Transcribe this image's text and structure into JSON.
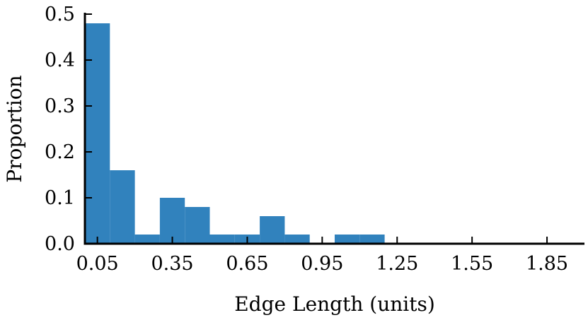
{
  "chart_data": {
    "type": "bar",
    "subtype": "histogram",
    "title": "",
    "xlabel": "Edge Length (units)",
    "ylabel": "Proportion",
    "bar_color": "#3182bd",
    "bin_width": 0.1,
    "bins": [
      {
        "x0": 0.0,
        "x1": 0.1,
        "value": 0.48
      },
      {
        "x0": 0.1,
        "x1": 0.2,
        "value": 0.16
      },
      {
        "x0": 0.2,
        "x1": 0.3,
        "value": 0.02
      },
      {
        "x0": 0.3,
        "x1": 0.4,
        "value": 0.1
      },
      {
        "x0": 0.4,
        "x1": 0.5,
        "value": 0.08
      },
      {
        "x0": 0.5,
        "x1": 0.6,
        "value": 0.02
      },
      {
        "x0": 0.6,
        "x1": 0.7,
        "value": 0.02
      },
      {
        "x0": 0.7,
        "x1": 0.8,
        "value": 0.06
      },
      {
        "x0": 0.8,
        "x1": 0.9,
        "value": 0.02
      },
      {
        "x0": 0.9,
        "x1": 1.0,
        "value": 0.0
      },
      {
        "x0": 1.0,
        "x1": 1.1,
        "value": 0.02
      },
      {
        "x0": 1.1,
        "x1": 1.2,
        "value": 0.02
      },
      {
        "x0": 1.2,
        "x1": 1.3,
        "value": 0.0
      },
      {
        "x0": 1.3,
        "x1": 1.4,
        "value": 0.0
      },
      {
        "x0": 1.4,
        "x1": 1.5,
        "value": 0.0
      },
      {
        "x0": 1.5,
        "x1": 1.6,
        "value": 0.0
      },
      {
        "x0": 1.6,
        "x1": 1.7,
        "value": 0.0
      },
      {
        "x0": 1.7,
        "x1": 1.8,
        "value": 0.0
      },
      {
        "x0": 1.8,
        "x1": 1.9,
        "value": 0.0
      },
      {
        "x0": 1.9,
        "x1": 2.0,
        "value": 0.0
      }
    ],
    "xlim": [
      0.0,
      2.0
    ],
    "ylim": [
      0.0,
      0.5
    ],
    "xticks": [
      0.05,
      0.35,
      0.65,
      0.95,
      1.25,
      1.55,
      1.85
    ],
    "xtick_labels": [
      "0.05",
      "0.35",
      "0.65",
      "0.95",
      "1.25",
      "1.55",
      "1.85"
    ],
    "yticks": [
      0.0,
      0.1,
      0.2,
      0.3,
      0.4,
      0.5
    ],
    "ytick_labels": [
      "0.0",
      "0.1",
      "0.2",
      "0.3",
      "0.4",
      "0.5"
    ],
    "grid": false,
    "legend": "none"
  }
}
